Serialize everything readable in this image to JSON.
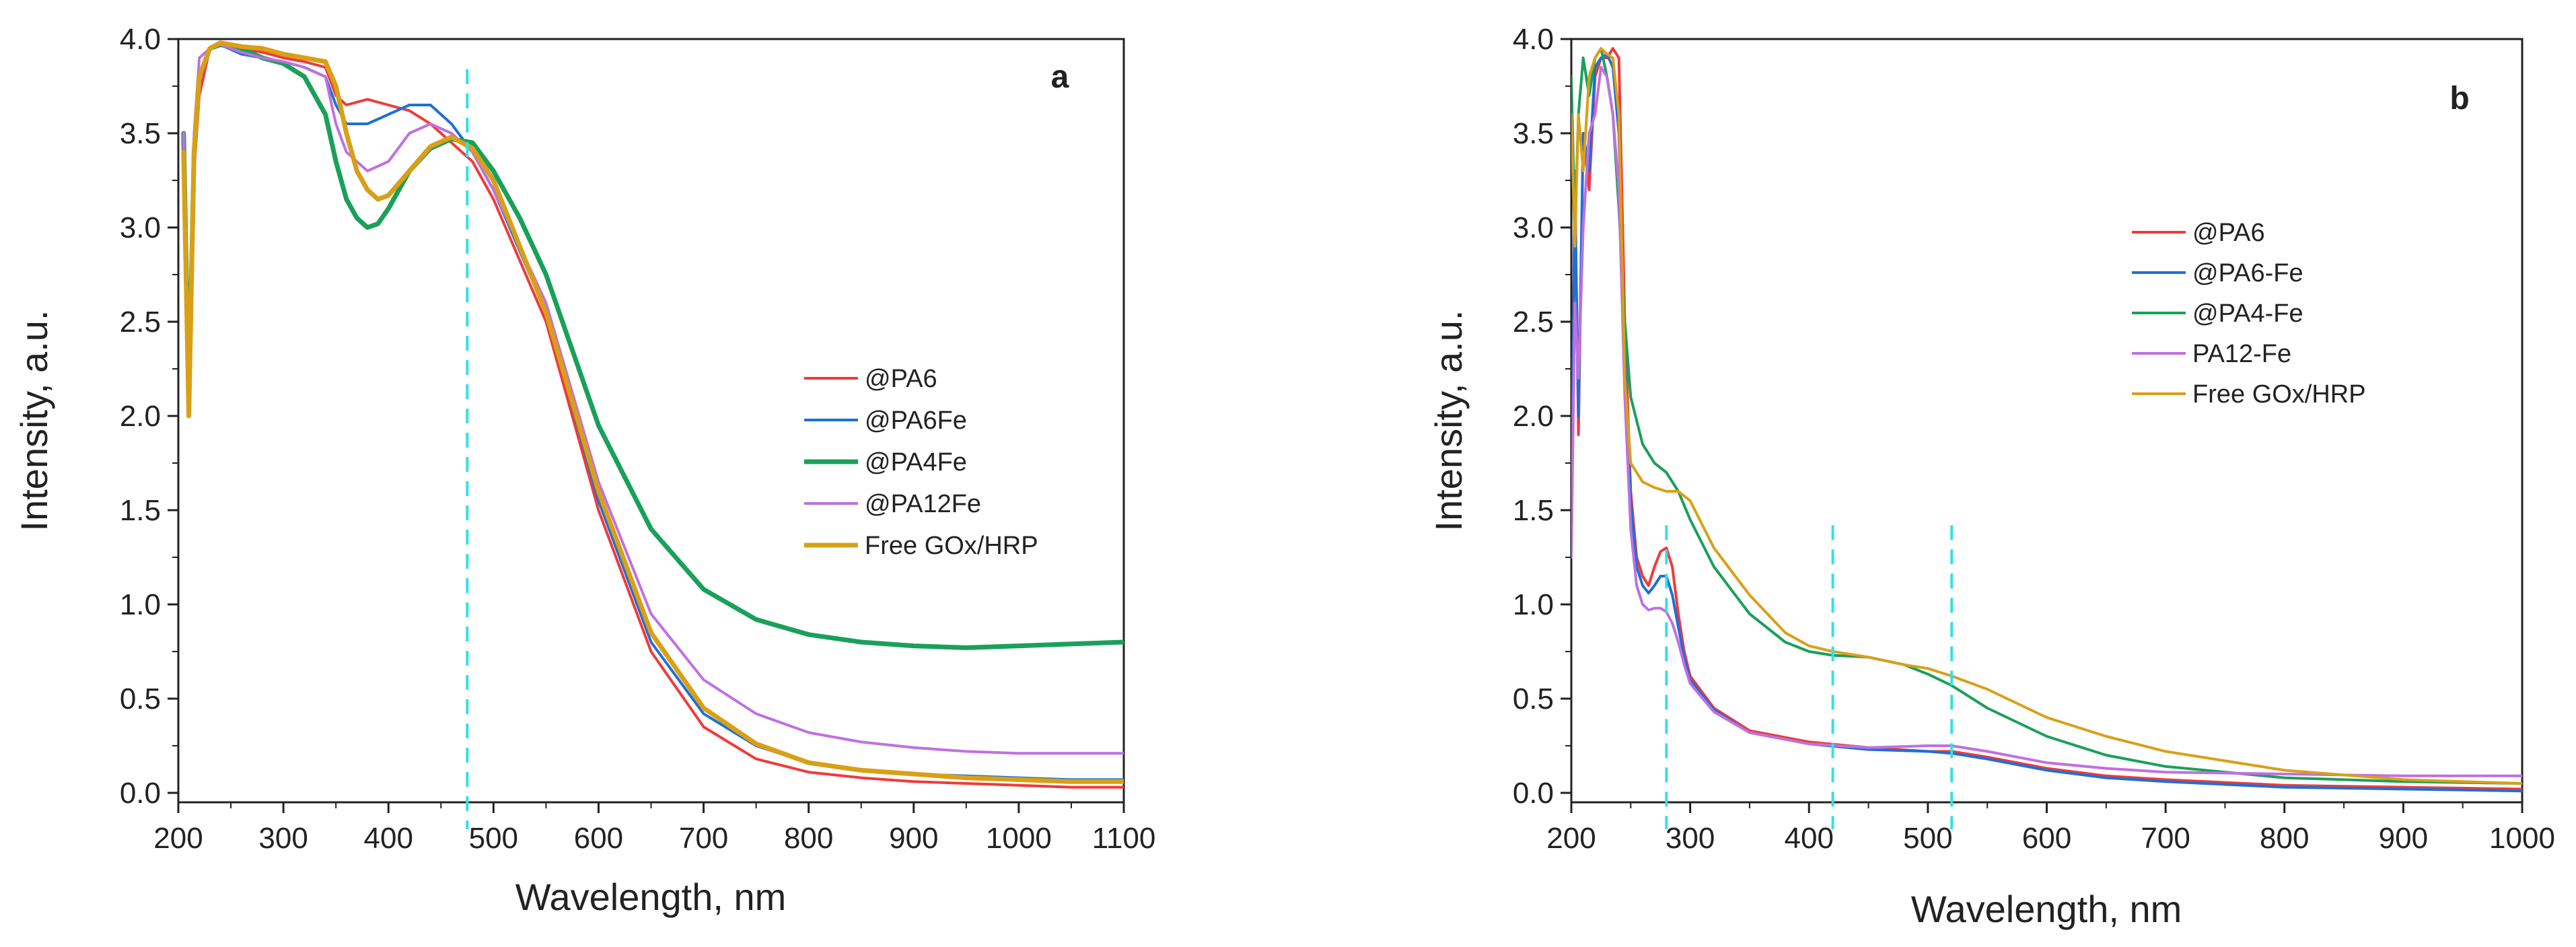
{
  "chart_data": [
    {
      "type": "line",
      "panel_label": "a",
      "xlabel": "Wavelength, nm",
      "ylabel": "Intensity, a.u.",
      "xlim": [
        200,
        1100
      ],
      "ylim": [
        -0.05,
        4.0
      ],
      "xticks": [
        200,
        300,
        400,
        500,
        600,
        700,
        800,
        900,
        1000,
        1100
      ],
      "yticks": [
        0.0,
        0.5,
        1.0,
        1.5,
        2.0,
        2.5,
        3.0,
        3.5,
        4.0
      ],
      "ytick_labels": [
        "0.0",
        "0.5",
        "1.0",
        "1.5",
        "2.0",
        "2.5",
        "3.0",
        "3.5",
        "4.0"
      ],
      "legend_position": "center-right",
      "marker_lines": [
        {
          "x": 475,
          "color": "#33e0e6"
        }
      ],
      "series": [
        {
          "name": "@PA6",
          "color": "#f03a3a",
          "width": "thin",
          "x": [
            205,
            210,
            215,
            220,
            230,
            240,
            260,
            280,
            300,
            320,
            340,
            350,
            360,
            380,
            400,
            420,
            440,
            460,
            480,
            500,
            550,
            600,
            650,
            700,
            750,
            800,
            850,
            900,
            950,
            1000,
            1050,
            1100
          ],
          "y": [
            3.5,
            2.1,
            3.3,
            3.7,
            3.95,
            3.98,
            3.95,
            3.93,
            3.9,
            3.88,
            3.85,
            3.7,
            3.65,
            3.68,
            3.65,
            3.62,
            3.55,
            3.45,
            3.35,
            3.15,
            2.5,
            1.5,
            0.75,
            0.35,
            0.18,
            0.11,
            0.08,
            0.06,
            0.05,
            0.04,
            0.03,
            0.03
          ]
        },
        {
          "name": "@PA6Fe",
          "color": "#1f6fd8",
          "width": "thin",
          "x": [
            205,
            210,
            215,
            220,
            230,
            240,
            260,
            280,
            300,
            320,
            340,
            350,
            360,
            380,
            400,
            420,
            440,
            460,
            480,
            500,
            550,
            600,
            650,
            700,
            750,
            800,
            850,
            900,
            950,
            1000,
            1050,
            1100
          ],
          "y": [
            3.4,
            2.0,
            3.4,
            3.8,
            3.95,
            3.97,
            3.92,
            3.9,
            3.88,
            3.85,
            3.8,
            3.65,
            3.55,
            3.55,
            3.6,
            3.65,
            3.65,
            3.55,
            3.4,
            3.2,
            2.55,
            1.55,
            0.8,
            0.42,
            0.25,
            0.16,
            0.12,
            0.1,
            0.09,
            0.08,
            0.07,
            0.07
          ]
        },
        {
          "name": "@PA4Fe",
          "color": "#1aa05a",
          "width": "thick",
          "x": [
            205,
            210,
            215,
            220,
            230,
            240,
            260,
            280,
            300,
            320,
            340,
            350,
            360,
            370,
            380,
            390,
            400,
            420,
            440,
            460,
            480,
            500,
            525,
            550,
            575,
            600,
            650,
            700,
            750,
            800,
            850,
            900,
            950,
            1000,
            1050,
            1100
          ],
          "y": [
            3.5,
            2.1,
            3.4,
            3.8,
            3.95,
            3.97,
            3.95,
            3.9,
            3.87,
            3.8,
            3.6,
            3.35,
            3.15,
            3.05,
            3.0,
            3.02,
            3.1,
            3.3,
            3.42,
            3.47,
            3.45,
            3.3,
            3.05,
            2.75,
            2.35,
            1.95,
            1.4,
            1.08,
            0.92,
            0.84,
            0.8,
            0.78,
            0.77,
            0.78,
            0.79,
            0.8
          ]
        },
        {
          "name": "@PA12Fe",
          "color": "#c070e0",
          "width": "thin",
          "x": [
            205,
            210,
            215,
            220,
            230,
            240,
            260,
            280,
            300,
            320,
            340,
            350,
            360,
            380,
            400,
            420,
            440,
            460,
            480,
            500,
            550,
            600,
            650,
            700,
            750,
            800,
            850,
            900,
            950,
            1000,
            1050,
            1100
          ],
          "y": [
            3.5,
            2.0,
            3.5,
            3.9,
            3.95,
            3.97,
            3.93,
            3.9,
            3.88,
            3.85,
            3.8,
            3.55,
            3.4,
            3.3,
            3.35,
            3.5,
            3.55,
            3.5,
            3.4,
            3.2,
            2.6,
            1.65,
            0.95,
            0.6,
            0.42,
            0.32,
            0.27,
            0.24,
            0.22,
            0.21,
            0.21,
            0.21
          ]
        },
        {
          "name": "Free GOx/HRP",
          "color": "#d9a017",
          "width": "thick",
          "x": [
            205,
            210,
            215,
            220,
            230,
            240,
            260,
            280,
            300,
            320,
            340,
            350,
            360,
            370,
            380,
            390,
            400,
            420,
            440,
            460,
            480,
            500,
            550,
            600,
            650,
            700,
            750,
            800,
            850,
            900,
            950,
            1000,
            1050,
            1100
          ],
          "y": [
            3.4,
            2.0,
            3.4,
            3.8,
            3.95,
            3.98,
            3.96,
            3.95,
            3.92,
            3.9,
            3.88,
            3.75,
            3.5,
            3.3,
            3.2,
            3.15,
            3.17,
            3.3,
            3.43,
            3.48,
            3.42,
            3.25,
            2.55,
            1.6,
            0.85,
            0.45,
            0.26,
            0.16,
            0.12,
            0.1,
            0.08,
            0.07,
            0.06,
            0.06
          ]
        }
      ]
    },
    {
      "type": "line",
      "panel_label": "b",
      "xlabel": "Wavelength, nm",
      "ylabel": "Intensity, a.u.",
      "xlim": [
        200,
        1000
      ],
      "ylim": [
        -0.05,
        4.0
      ],
      "xticks": [
        200,
        300,
        400,
        500,
        600,
        700,
        800,
        900,
        1000
      ],
      "yticks": [
        0.0,
        0.5,
        1.0,
        1.5,
        2.0,
        2.5,
        3.0,
        3.5,
        4.0
      ],
      "ytick_labels": [
        "0.0",
        "0.5",
        "1.0",
        "1.5",
        "2.0",
        "2.5",
        "3.0",
        "3.5",
        "4.0"
      ],
      "legend_position": "upper-center-right",
      "marker_lines": [
        {
          "x": 280,
          "color": "#33e0e6"
        },
        {
          "x": 420,
          "color": "#33e0e6"
        },
        {
          "x": 520,
          "color": "#33e0e6"
        }
      ],
      "series": [
        {
          "name": "@PA6",
          "color": "#f03a3a",
          "width": "thin",
          "x": [
            200,
            203,
            206,
            210,
            215,
            220,
            225,
            230,
            235,
            240,
            245,
            250,
            255,
            260,
            265,
            270,
            275,
            280,
            285,
            290,
            295,
            300,
            320,
            350,
            400,
            450,
            500,
            520,
            550,
            600,
            650,
            700,
            800,
            900,
            1000
          ],
          "y": [
            1.3,
            3.3,
            1.9,
            3.5,
            3.2,
            3.8,
            3.9,
            3.9,
            3.95,
            3.9,
            2.5,
            1.6,
            1.25,
            1.15,
            1.1,
            1.2,
            1.28,
            1.3,
            1.2,
            0.95,
            0.75,
            0.62,
            0.45,
            0.33,
            0.27,
            0.24,
            0.22,
            0.22,
            0.19,
            0.13,
            0.09,
            0.07,
            0.04,
            0.03,
            0.02
          ]
        },
        {
          "name": "@PA6-Fe",
          "color": "#1f6fd8",
          "width": "thin",
          "x": [
            200,
            203,
            206,
            210,
            215,
            220,
            225,
            230,
            235,
            240,
            245,
            250,
            255,
            260,
            265,
            270,
            275,
            280,
            285,
            290,
            295,
            300,
            320,
            350,
            400,
            450,
            500,
            520,
            550,
            600,
            650,
            700,
            800,
            900,
            1000
          ],
          "y": [
            1.3,
            3.2,
            2.0,
            3.5,
            3.3,
            3.85,
            3.9,
            3.92,
            3.85,
            3.5,
            2.3,
            1.55,
            1.2,
            1.1,
            1.06,
            1.1,
            1.15,
            1.15,
            1.05,
            0.88,
            0.72,
            0.6,
            0.44,
            0.32,
            0.26,
            0.23,
            0.22,
            0.21,
            0.18,
            0.12,
            0.08,
            0.06,
            0.03,
            0.02,
            0.01
          ]
        },
        {
          "name": "@PA4-Fe",
          "color": "#1aa05a",
          "width": "thin",
          "x": [
            200,
            203,
            206,
            210,
            215,
            220,
            225,
            230,
            235,
            240,
            245,
            250,
            260,
            270,
            280,
            290,
            300,
            320,
            350,
            380,
            400,
            420,
            450,
            480,
            500,
            520,
            550,
            600,
            650,
            700,
            800,
            900,
            1000
          ],
          "y": [
            3.8,
            3.0,
            3.6,
            3.9,
            3.7,
            3.9,
            3.95,
            3.8,
            3.6,
            3.1,
            2.5,
            2.1,
            1.85,
            1.75,
            1.7,
            1.6,
            1.45,
            1.2,
            0.95,
            0.8,
            0.75,
            0.73,
            0.72,
            0.68,
            0.63,
            0.57,
            0.45,
            0.3,
            0.2,
            0.14,
            0.08,
            0.06,
            0.05
          ]
        },
        {
          "name": "PA12-Fe",
          "color": "#c070e0",
          "width": "thin",
          "x": [
            200,
            203,
            206,
            210,
            215,
            220,
            225,
            230,
            235,
            240,
            245,
            250,
            255,
            260,
            265,
            270,
            275,
            280,
            285,
            290,
            295,
            300,
            320,
            350,
            400,
            450,
            500,
            520,
            550,
            600,
            650,
            700,
            800,
            900,
            1000
          ],
          "y": [
            1.25,
            2.6,
            2.2,
            3.0,
            3.5,
            3.6,
            3.85,
            3.8,
            3.6,
            3.2,
            2.1,
            1.4,
            1.1,
            1.0,
            0.97,
            0.98,
            0.98,
            0.96,
            0.9,
            0.8,
            0.68,
            0.58,
            0.43,
            0.32,
            0.26,
            0.24,
            0.25,
            0.25,
            0.22,
            0.16,
            0.13,
            0.11,
            0.1,
            0.09,
            0.09
          ]
        },
        {
          "name": "Free GOx/HRP",
          "color": "#d9a017",
          "width": "thin",
          "x": [
            200,
            203,
            206,
            210,
            215,
            220,
            225,
            230,
            235,
            240,
            245,
            250,
            260,
            270,
            280,
            290,
            300,
            320,
            350,
            380,
            400,
            420,
            450,
            480,
            500,
            520,
            550,
            600,
            650,
            700,
            800,
            900,
            1000
          ],
          "y": [
            3.6,
            2.9,
            3.6,
            3.3,
            3.8,
            3.9,
            3.95,
            3.92,
            3.9,
            3.6,
            2.2,
            1.75,
            1.65,
            1.62,
            1.6,
            1.6,
            1.55,
            1.3,
            1.05,
            0.85,
            0.78,
            0.75,
            0.72,
            0.68,
            0.66,
            0.62,
            0.55,
            0.4,
            0.3,
            0.22,
            0.12,
            0.07,
            0.05
          ]
        }
      ]
    }
  ]
}
